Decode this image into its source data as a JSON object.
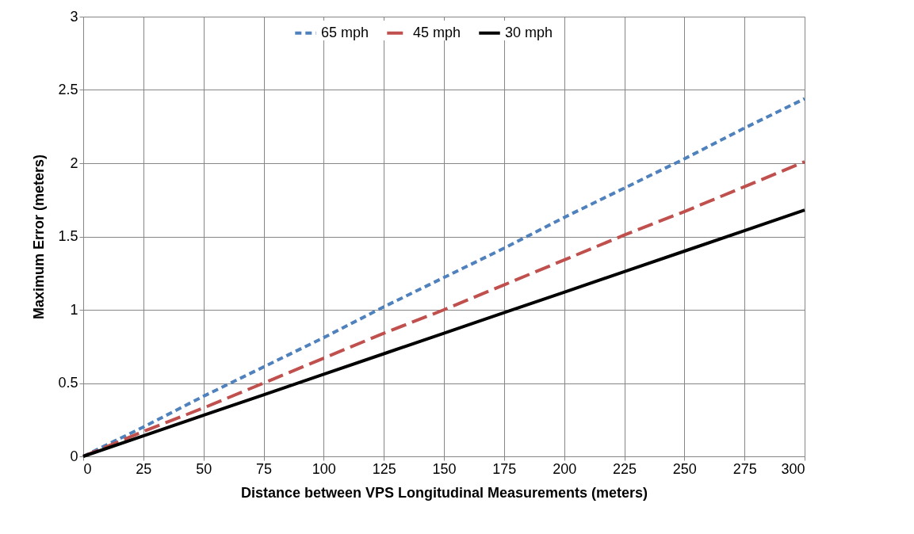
{
  "chart_data": {
    "type": "line",
    "xlabel": "Distance between VPS Longitudinal Measurements (meters)",
    "ylabel": "Maximum Error (meters)",
    "x": [
      0,
      25,
      50,
      75,
      100,
      125,
      150,
      175,
      200,
      225,
      250,
      275,
      300
    ],
    "series": [
      {
        "name": "65 mph",
        "color": "#4f81bd",
        "line_style": "dashed",
        "values": [
          0,
          0.2,
          0.41,
          0.61,
          0.81,
          1.02,
          1.22,
          1.42,
          1.63,
          1.83,
          2.03,
          2.24,
          2.44
        ]
      },
      {
        "name": "45 mph",
        "color": "#c0504d",
        "line_style": "longdash",
        "values": [
          0,
          0.17,
          0.33,
          0.5,
          0.67,
          0.84,
          1.0,
          1.17,
          1.34,
          1.51,
          1.67,
          1.84,
          2.01
        ]
      },
      {
        "name": "30 mph",
        "color": "#000000",
        "line_style": "solid",
        "values": [
          0,
          0.14,
          0.28,
          0.42,
          0.56,
          0.7,
          0.84,
          0.98,
          1.12,
          1.26,
          1.4,
          1.54,
          1.68
        ]
      }
    ],
    "xlim": [
      0,
      300
    ],
    "xticks": [
      0,
      25,
      50,
      75,
      100,
      125,
      150,
      175,
      200,
      225,
      250,
      275,
      300
    ],
    "ylim": [
      0,
      3
    ],
    "yticks": [
      0,
      0.5,
      1,
      1.5,
      2,
      2.5,
      3
    ],
    "grid": true,
    "legend": "top",
    "marker": "none"
  }
}
